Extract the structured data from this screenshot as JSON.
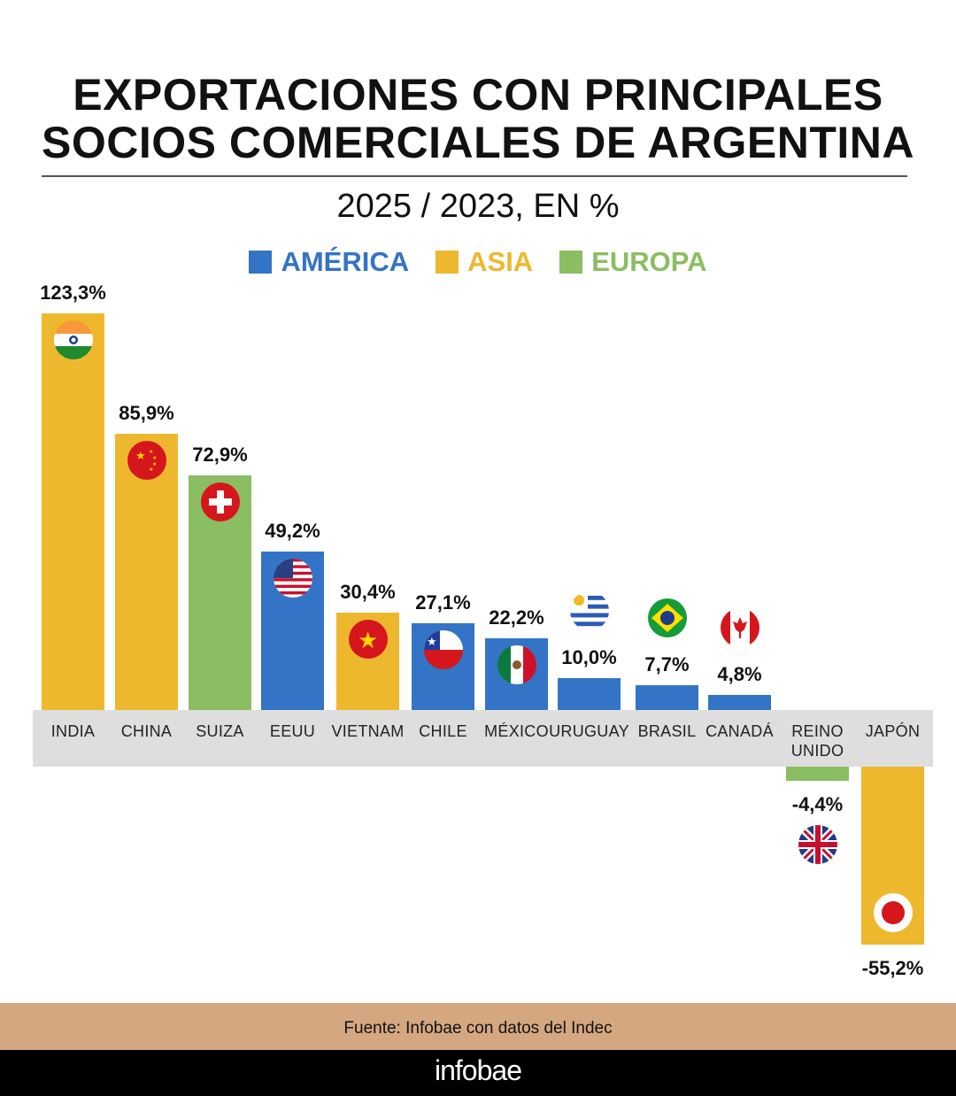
{
  "header": {
    "title_line1": "EXPORTACIONES CON PRINCIPALES",
    "title_line2": "SOCIOS COMERCIALES DE ARGENTINA",
    "subtitle": "2025 / 2023, EN %"
  },
  "legend": [
    {
      "label": "AMÉRICA",
      "color": "#3374c6"
    },
    {
      "label": "ASIA",
      "color": "#eeb82e"
    },
    {
      "label": "EUROPA",
      "color": "#8bbd62"
    }
  ],
  "chart_data": {
    "type": "bar",
    "title": "EXPORTACIONES CON PRINCIPALES SOCIOS COMERCIALES DE ARGENTINA",
    "subtitle": "2025 / 2023, EN %",
    "categories": [
      "INDIA",
      "CHINA",
      "SUIZA",
      "EEUU",
      "VIETNAM",
      "CHILE",
      "MÉXICO",
      "URUGUAY",
      "BRASIL",
      "CANADÁ",
      "REINO UNIDO",
      "JAPÓN"
    ],
    "values": [
      123.3,
      85.9,
      72.9,
      49.2,
      30.4,
      27.1,
      22.2,
      10.0,
      7.7,
      4.8,
      -4.4,
      -55.2
    ],
    "labels": [
      "123,3%",
      "85,9%",
      "72,9%",
      "49,2%",
      "30,4%",
      "27,1%",
      "22,2%",
      "10,0%",
      "7,7%",
      "4,8%",
      "-4,4%",
      "-55,2%"
    ],
    "region": [
      "ASIA",
      "ASIA",
      "EUROPA",
      "AMÉRICA",
      "ASIA",
      "AMÉRICA",
      "AMÉRICA",
      "AMÉRICA",
      "AMÉRICA",
      "AMÉRICA",
      "EUROPA",
      "ASIA"
    ],
    "flags": [
      "india-flag-icon",
      "china-flag-icon",
      "switzerland-flag-icon",
      "usa-flag-icon",
      "vietnam-flag-icon",
      "chile-flag-icon",
      "mexico-flag-icon",
      "uruguay-flag-icon",
      "brazil-flag-icon",
      "canada-flag-icon",
      "uk-flag-icon",
      "japan-flag-icon"
    ],
    "legend_placement": "top-center",
    "grid": false
  },
  "footer": {
    "source": "Fuente: Infobae con datos del Indec",
    "brand": "infobae"
  }
}
